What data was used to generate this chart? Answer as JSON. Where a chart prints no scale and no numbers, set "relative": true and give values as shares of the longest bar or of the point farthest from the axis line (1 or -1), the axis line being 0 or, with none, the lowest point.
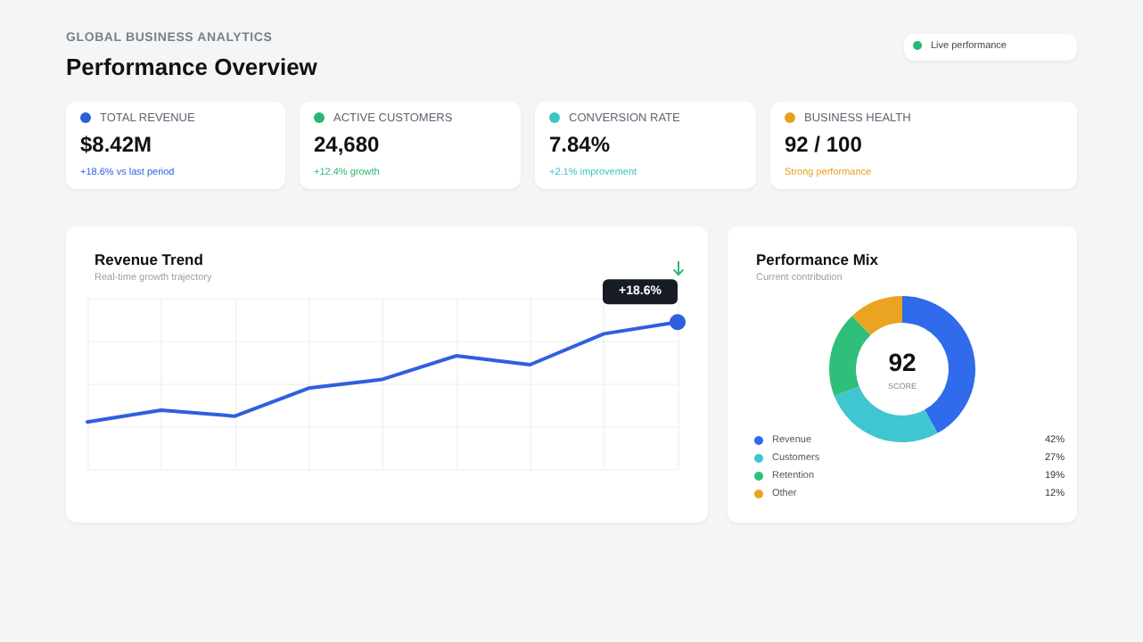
{
  "chart_data": [
    {
      "type": "other",
      "title": "Performance Overview",
      "subtitle": "GLOBAL BUSINESS ANALYTICS",
      "annotations": [
        "TOTAL REVENUE",
        "$8.42M",
        "+18.6% vs last period",
        "ACTIVE CUSTOMERS",
        "24,680",
        "+12.4% growth",
        "CONVERSION RATE",
        "7.84%",
        "+2.1% improvement",
        "BUSINESS HEALTH",
        "92 / 100",
        "Strong performance",
        "Live performance"
      ],
      "colors": [
        "#2f5fd8",
        "#2bb673",
        "#3cc4c4",
        "#e8a020",
        "#2bb673"
      ]
    },
    {
      "type": "line",
      "title": "Revenue Trend",
      "subtitle": "Real-time growth trajectory",
      "relative": true,
      "grid": true,
      "categories": [
        null,
        null,
        null,
        null,
        null,
        null,
        null,
        null,
        null
      ],
      "series": [
        {
          "color": "#2f5fe0",
          "values": [
            0.32,
            0.4,
            0.36,
            0.55,
            0.61,
            0.77,
            0.71,
            0.92,
            1.0
          ]
        }
      ],
      "annotations": [
        "+18.6%"
      ]
    },
    {
      "type": "donut",
      "title": "Performance Mix",
      "subtitle": "Current contribution",
      "legend": "bottom",
      "categories": [
        "Revenue",
        "Customers",
        "Retention",
        "Other"
      ],
      "values": [
        42,
        27,
        19,
        12
      ],
      "value_labels": [
        "42%",
        "27%",
        "19%",
        "12%"
      ],
      "colors": [
        "#2f6bea",
        "#3fc6d1",
        "#2fbf7a",
        "#eba322"
      ],
      "annotations": [
        "92",
        "SCORE"
      ]
    }
  ]
}
